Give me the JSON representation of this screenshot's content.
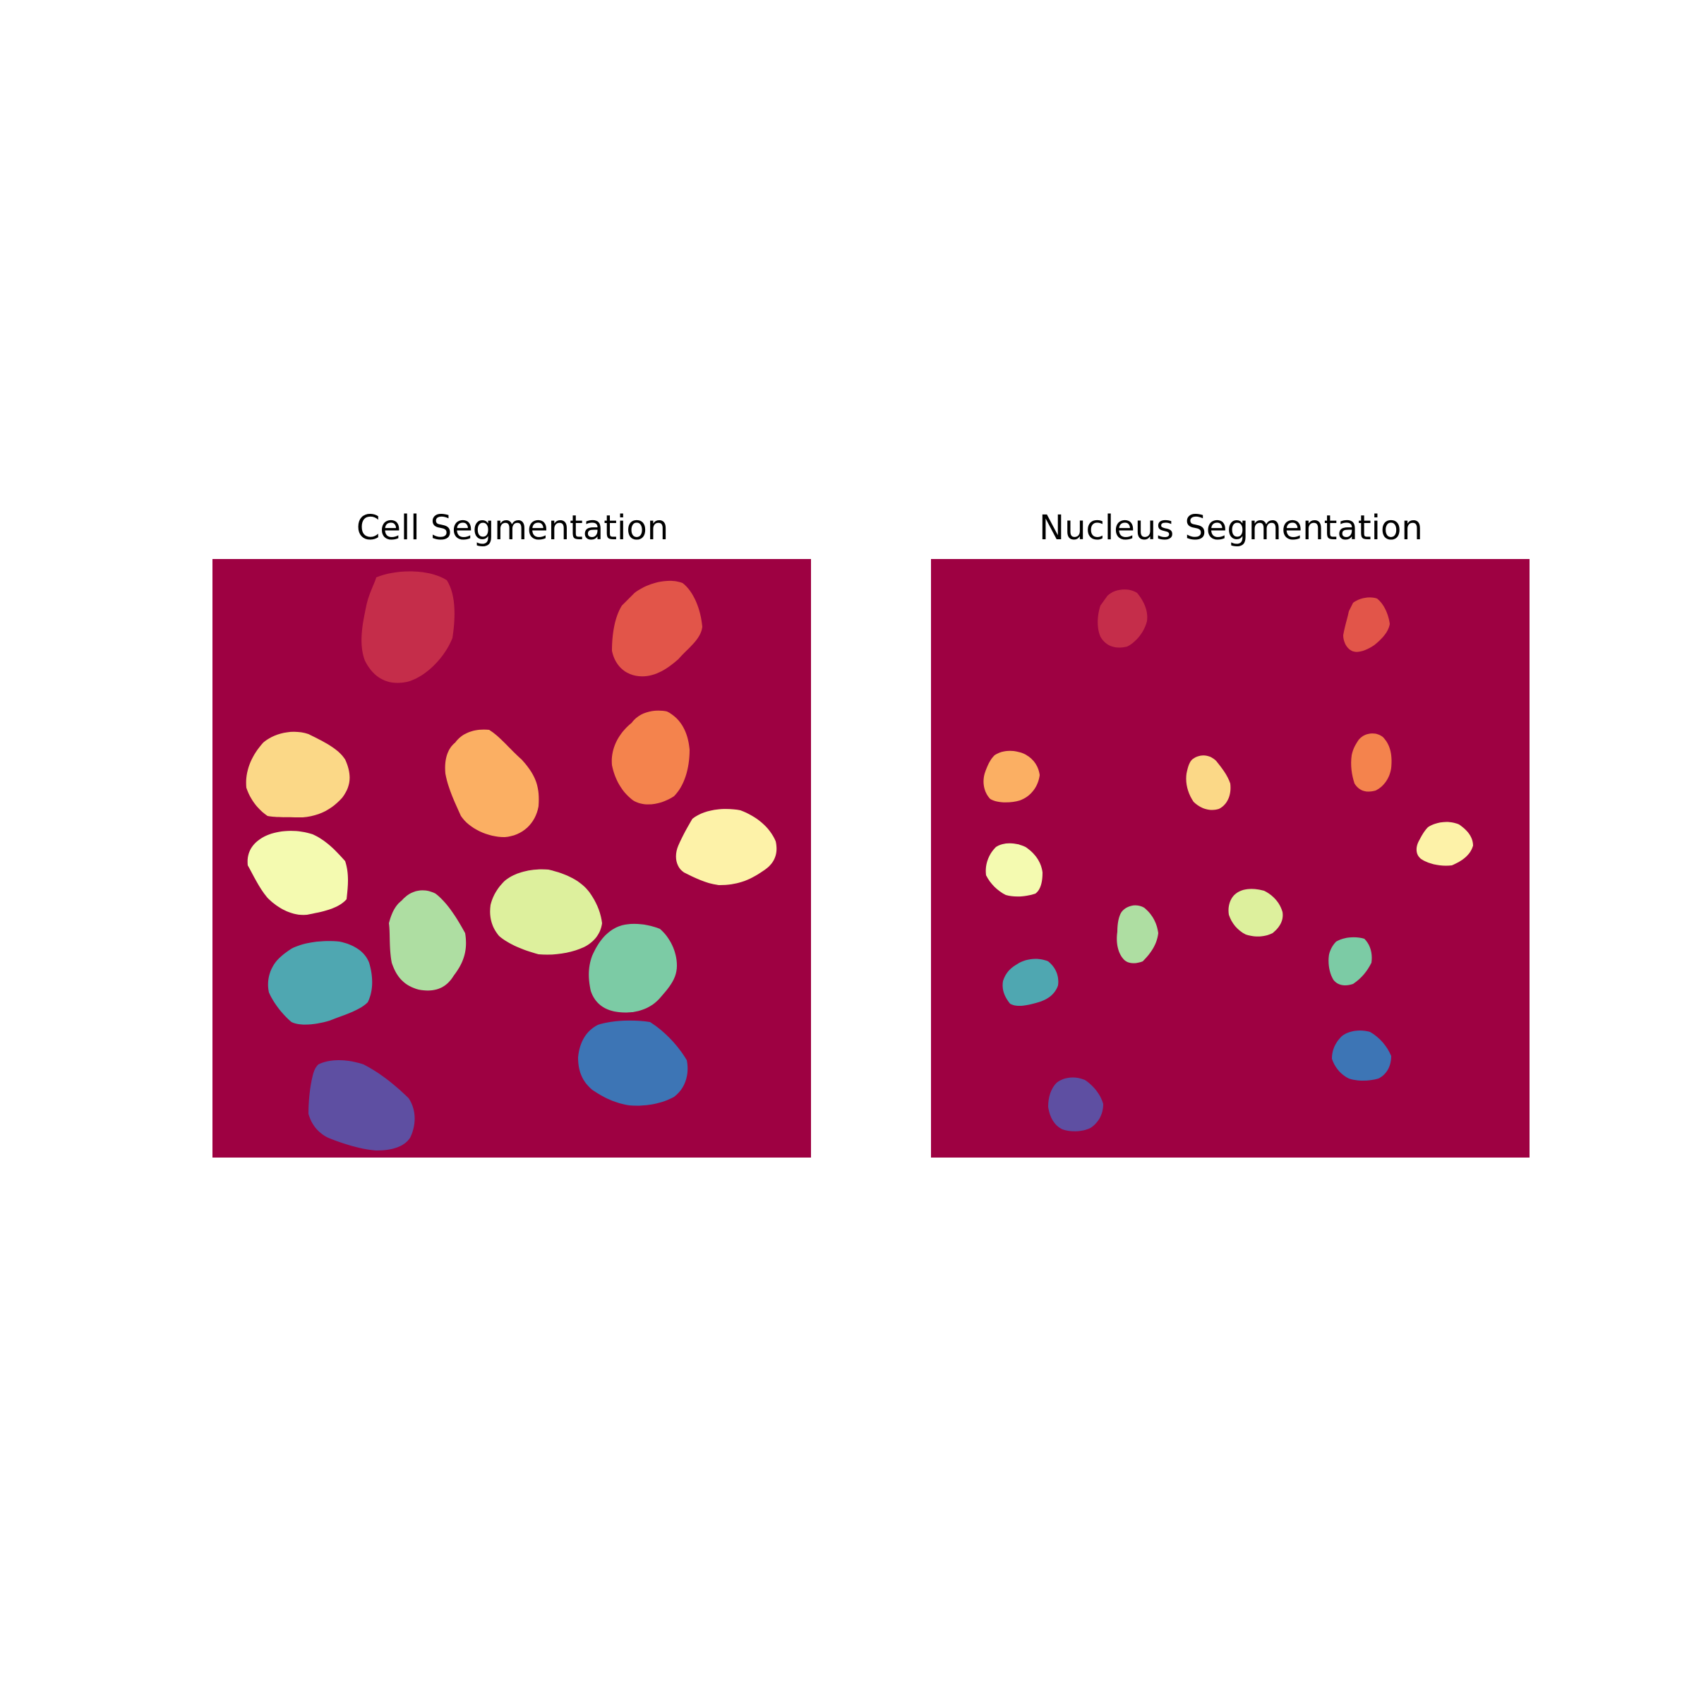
{
  "figure": {
    "panels": [
      {
        "title": "Cell Segmentation"
      },
      {
        "title": "Nucleus Segmentation"
      }
    ]
  },
  "colors": {
    "background_label": "#9E0142",
    "labels": {
      "1": "#C52D4A",
      "2": "#E25549",
      "3": "#F4834D",
      "4": "#FBAF63",
      "5": "#FBD887",
      "6": "#FDF2A8",
      "7": "#F4FAB0",
      "8": "#DDF09D",
      "9": "#AEDEA2",
      "10": "#7CCBA5",
      "11": "#4FA7B1",
      "12": "#3D75B5",
      "13": "#5E4FA2"
    }
  }
}
